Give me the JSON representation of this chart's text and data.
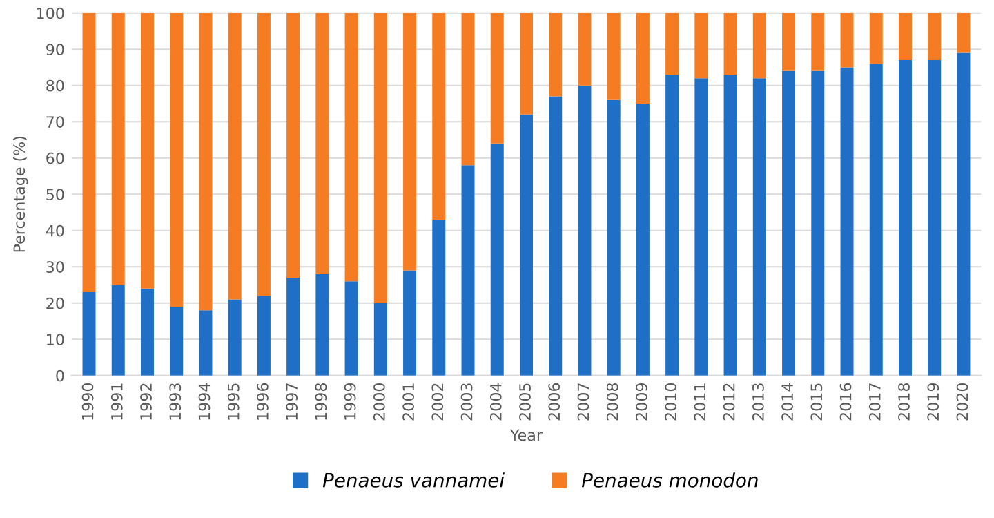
{
  "chart_data": {
    "type": "bar",
    "stacked": true,
    "xlabel": "Year",
    "ylabel": "Percentage (%)",
    "categories": [
      "1990",
      "1991",
      "1992",
      "1993",
      "1994",
      "1995",
      "1996",
      "1997",
      "1998",
      "1999",
      "2000",
      "2001",
      "2002",
      "2003",
      "2004",
      "2005",
      "2006",
      "2007",
      "2008",
      "2009",
      "2010",
      "2011",
      "2012",
      "2013",
      "2014",
      "2015",
      "2016",
      "2017",
      "2018",
      "2019",
      "2020"
    ],
    "series": [
      {
        "name": "Penaeus vannamei",
        "color": "#1f6fc6",
        "values": [
          23,
          25,
          24,
          19,
          18,
          21,
          22,
          27,
          28,
          26,
          20,
          29,
          43,
          58,
          64,
          72,
          77,
          80,
          76,
          75,
          83,
          82,
          83,
          82,
          84,
          84,
          85,
          86,
          87,
          87,
          89
        ]
      },
      {
        "name": "Penaeus monodon",
        "color": "#f57c22",
        "values": [
          77,
          75,
          76,
          81,
          82,
          79,
          78,
          73,
          72,
          74,
          80,
          71,
          57,
          42,
          36,
          28,
          23,
          20,
          24,
          25,
          17,
          18,
          17,
          18,
          16,
          16,
          15,
          14,
          13,
          13,
          11
        ]
      }
    ],
    "ylim": [
      0,
      100
    ],
    "yticks": [
      0,
      10,
      20,
      30,
      40,
      50,
      60,
      70,
      80,
      90,
      100
    ],
    "grid": "y",
    "legend": "bottom"
  }
}
